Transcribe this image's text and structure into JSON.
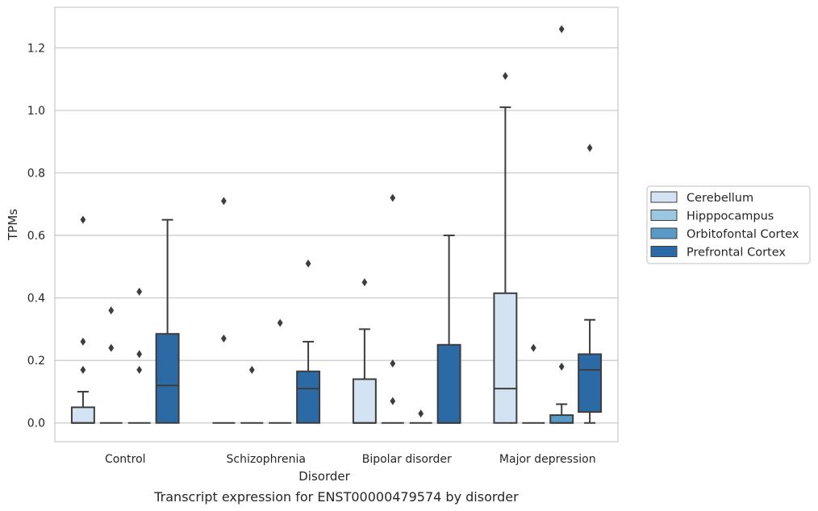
{
  "chart_data": {
    "type": "boxplot",
    "xlabel": "Disorder",
    "ylabel": "TPMs",
    "caption": "Transcript expression for ENST00000479574 by disorder",
    "ylim": [
      -0.06,
      1.33
    ],
    "yticks": [
      0.0,
      0.2,
      0.4,
      0.6,
      0.8,
      1.0,
      1.2
    ],
    "ytick_labels": [
      "0.0",
      "0.2",
      "0.4",
      "0.6",
      "0.8",
      "1.0",
      "1.2"
    ],
    "grid": "horizontal",
    "legend_position": "right",
    "categories": [
      "Control",
      "Schizophrenia",
      "Bipolar disorder",
      "Major depression"
    ],
    "series": [
      {
        "name": "Cerebellum",
        "color": "#d3e3f3",
        "boxes": [
          {
            "min": 0.0,
            "q1": 0.0,
            "median": 0.0,
            "q3": 0.05,
            "max": 0.1,
            "outliers": [
              0.17,
              0.26,
              0.65
            ]
          },
          {
            "min": 0.0,
            "q1": 0.0,
            "median": 0.0,
            "q3": 0.0,
            "max": 0.0,
            "outliers": [
              0.27,
              0.71
            ]
          },
          {
            "min": 0.0,
            "q1": 0.0,
            "median": 0.0,
            "q3": 0.14,
            "max": 0.3,
            "outliers": [
              0.45
            ]
          },
          {
            "min": 0.0,
            "q1": 0.0,
            "median": 0.11,
            "q3": 0.415,
            "max": 1.01,
            "outliers": [
              1.11
            ]
          }
        ]
      },
      {
        "name": "Hipppocampus",
        "color": "#9ac8e0",
        "boxes": [
          {
            "min": 0.0,
            "q1": 0.0,
            "median": 0.0,
            "q3": 0.0,
            "max": 0.0,
            "outliers": [
              0.24,
              0.36
            ]
          },
          {
            "min": 0.0,
            "q1": 0.0,
            "median": 0.0,
            "q3": 0.0,
            "max": 0.0,
            "outliers": [
              0.17
            ]
          },
          {
            "min": 0.0,
            "q1": 0.0,
            "median": 0.0,
            "q3": 0.0,
            "max": 0.0,
            "outliers": [
              0.07,
              0.19,
              0.72
            ]
          },
          {
            "min": 0.0,
            "q1": 0.0,
            "median": 0.0,
            "q3": 0.0,
            "max": 0.0,
            "outliers": [
              0.24
            ]
          }
        ]
      },
      {
        "name": "Orbitofontal Cortex",
        "color": "#5a9ac8",
        "boxes": [
          {
            "min": 0.0,
            "q1": 0.0,
            "median": 0.0,
            "q3": 0.0,
            "max": 0.0,
            "outliers": [
              0.17,
              0.22,
              0.42
            ]
          },
          {
            "min": 0.0,
            "q1": 0.0,
            "median": 0.0,
            "q3": 0.0,
            "max": 0.0,
            "outliers": [
              0.32
            ]
          },
          {
            "min": 0.0,
            "q1": 0.0,
            "median": 0.0,
            "q3": 0.0,
            "max": 0.0,
            "outliers": [
              0.03
            ]
          },
          {
            "min": 0.0,
            "q1": 0.0,
            "median": 0.0,
            "q3": 0.025,
            "max": 0.06,
            "outliers": [
              0.18,
              1.26
            ]
          }
        ]
      },
      {
        "name": "Prefrontal Cortex",
        "color": "#2c6aa5",
        "boxes": [
          {
            "min": 0.0,
            "q1": 0.0,
            "median": 0.12,
            "q3": 0.285,
            "max": 0.65,
            "outliers": []
          },
          {
            "min": 0.0,
            "q1": 0.0,
            "median": 0.11,
            "q3": 0.165,
            "max": 0.26,
            "outliers": [
              0.51
            ]
          },
          {
            "min": 0.0,
            "q1": 0.0,
            "median": 0.0,
            "q3": 0.25,
            "max": 0.6,
            "outliers": []
          },
          {
            "min": 0.0,
            "q1": 0.035,
            "median": 0.17,
            "q3": 0.22,
            "max": 0.33,
            "outliers": [
              0.88
            ]
          }
        ]
      }
    ]
  }
}
